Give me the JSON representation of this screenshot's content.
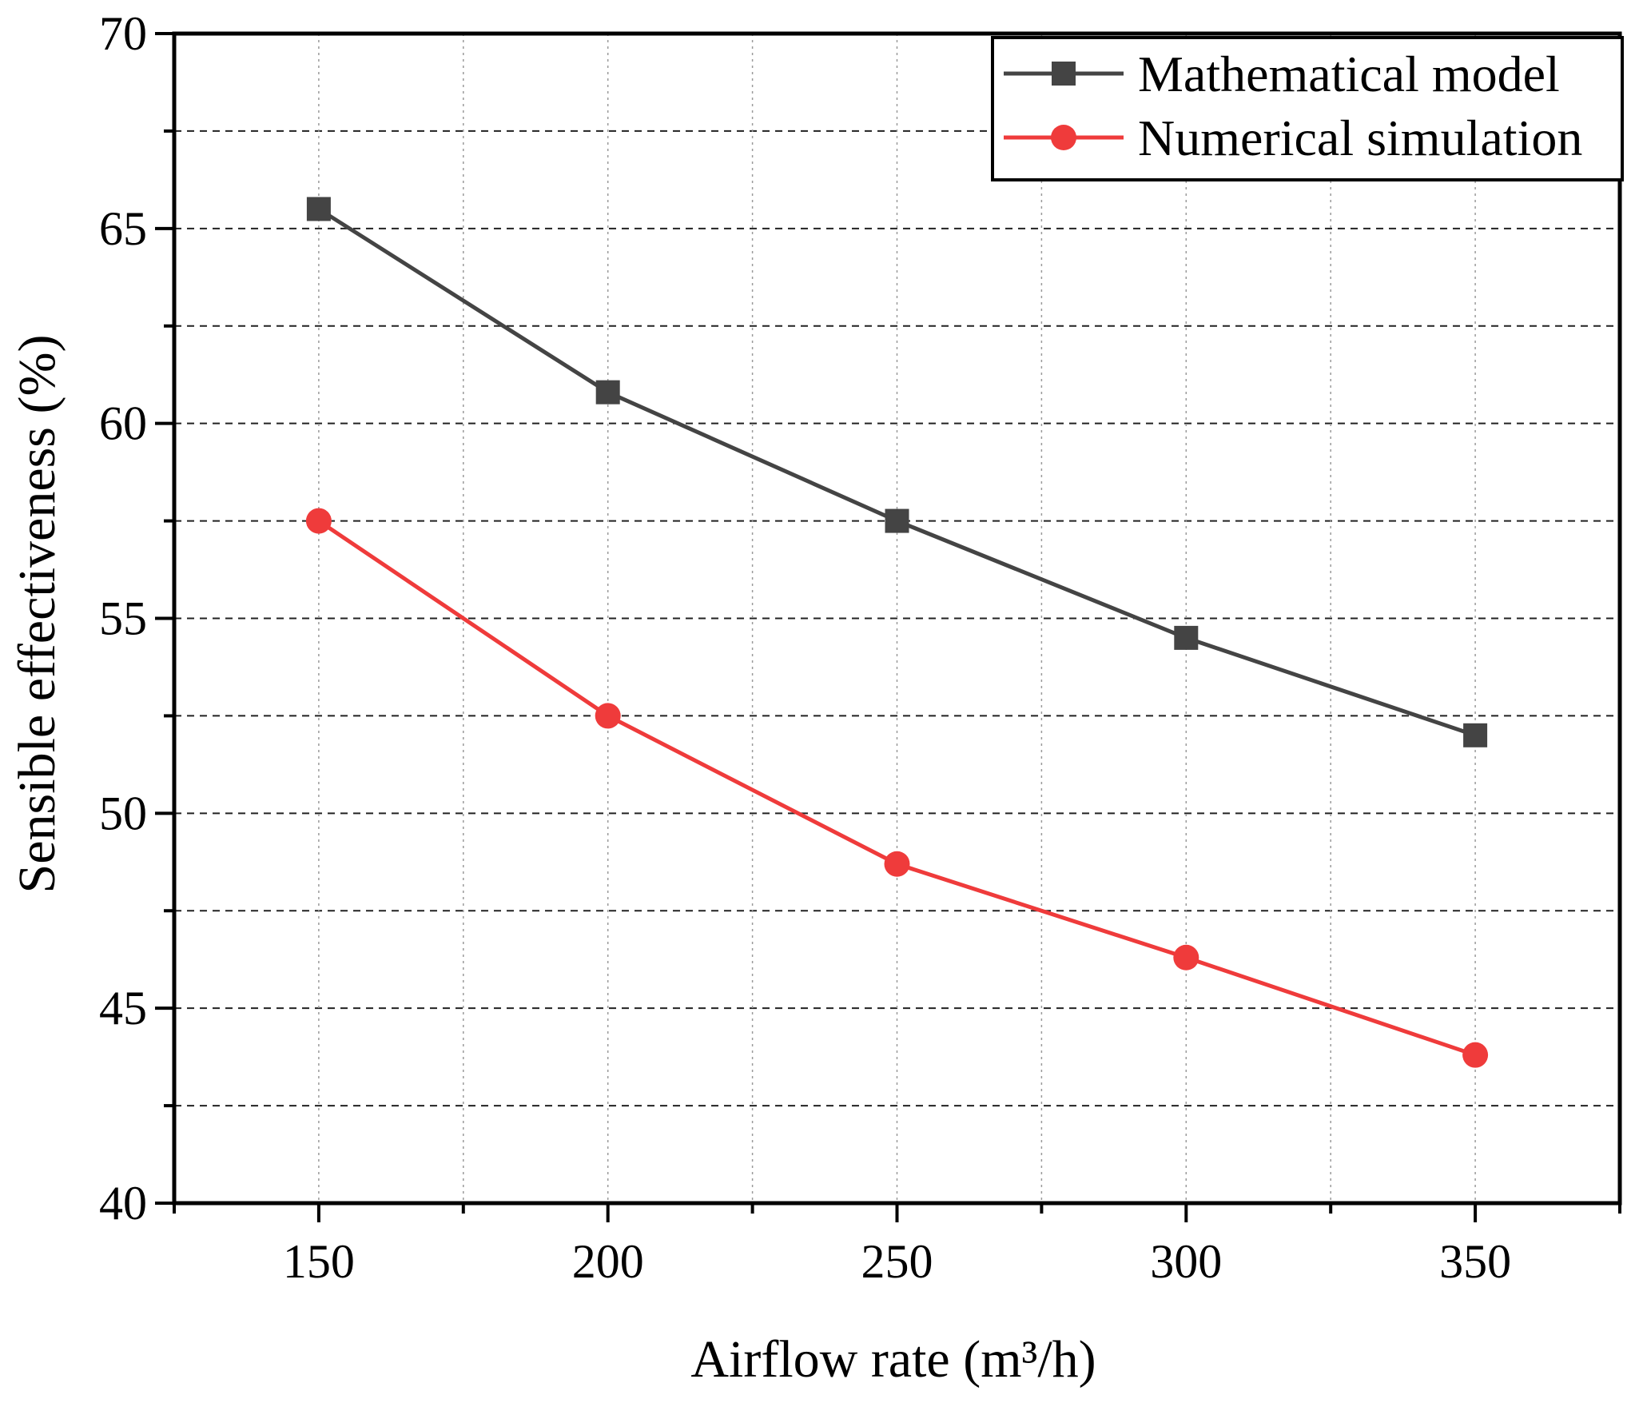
{
  "chart_data": {
    "type": "line",
    "title": "",
    "xlabel": "Airflow rate (m³/h)",
    "ylabel": "Sensible effectiveness (%)",
    "x": [
      150,
      200,
      250,
      300,
      350
    ],
    "xlim": [
      125,
      375
    ],
    "ylim": [
      40,
      70
    ],
    "x_ticks": [
      150,
      200,
      250,
      300,
      350
    ],
    "x_tick_labels": [
      "150",
      "200",
      "250",
      "300",
      "350"
    ],
    "x_minor_ticks": [
      125,
      175,
      225,
      275,
      325,
      375
    ],
    "y_ticks": [
      40,
      45,
      50,
      55,
      60,
      65,
      70
    ],
    "y_tick_labels": [
      "40",
      "45",
      "50",
      "55",
      "60",
      "65",
      "70"
    ],
    "y_minor_ticks": [
      42.5,
      47.5,
      52.5,
      57.5,
      62.5,
      67.5
    ],
    "grid": true,
    "legend_position": "top-right",
    "series": [
      {
        "name": "Mathematical model",
        "color": "#444444",
        "marker": "square",
        "values": [
          65.5,
          60.8,
          57.5,
          54.5,
          52.0
        ]
      },
      {
        "name": "Numerical simulation",
        "color": "#ef3b3b",
        "marker": "circle",
        "values": [
          57.5,
          52.5,
          48.7,
          46.3,
          43.8
        ]
      }
    ]
  }
}
